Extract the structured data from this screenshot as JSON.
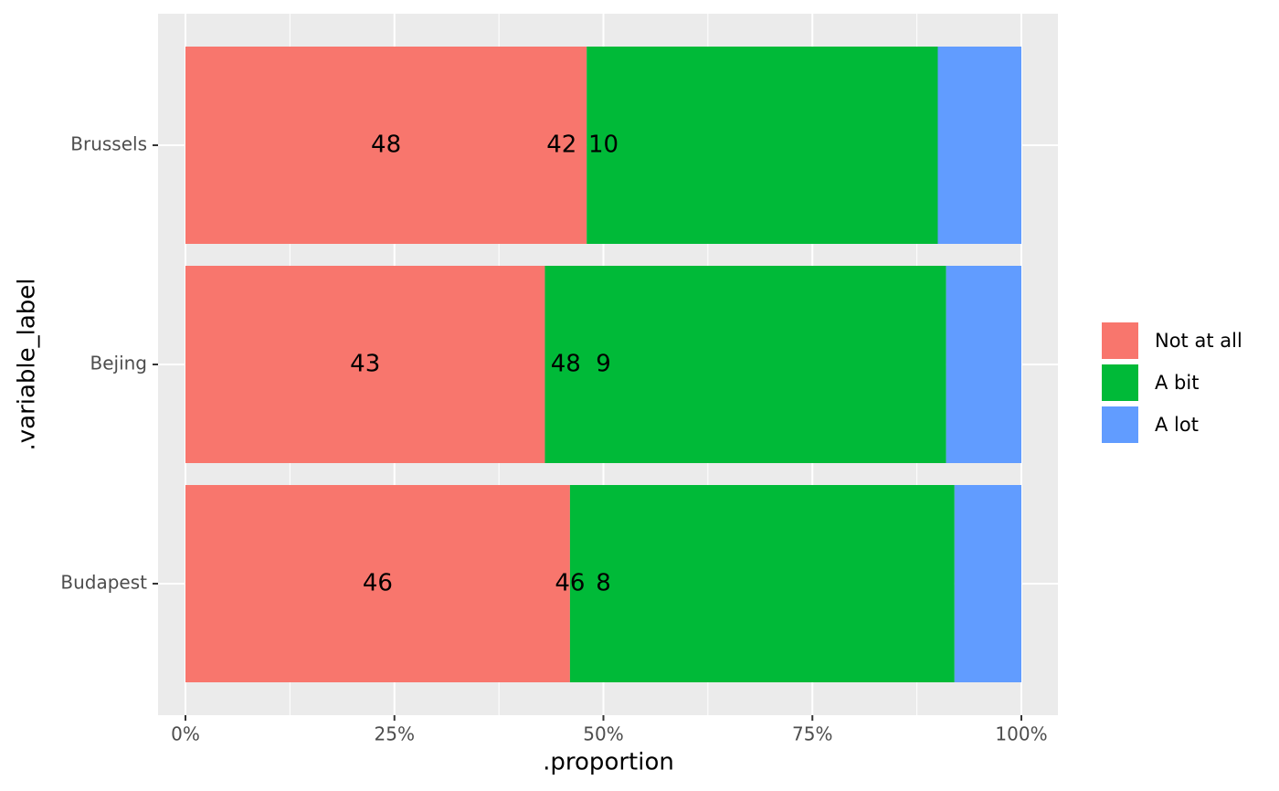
{
  "chart_data": {
    "type": "stacked_barh",
    "x_label": ".proportion",
    "y_label": ".variable_label",
    "categories": [
      "Brussels",
      "Bejing",
      "Budapest"
    ],
    "series": [
      {
        "name": "Not at all",
        "color": "#F8766D",
        "values": [
          48,
          43,
          46
        ]
      },
      {
        "name": "A bit",
        "color": "#00BA38",
        "values": [
          42,
          48,
          46
        ]
      },
      {
        "name": "A lot",
        "color": "#619CFF",
        "values": [
          10,
          9,
          8
        ]
      }
    ],
    "xlim": [
      0,
      100
    ],
    "xticks": [
      {
        "value": 0,
        "label": "0%"
      },
      {
        "value": 25,
        "label": "25%"
      },
      {
        "value": 50,
        "label": "50%"
      },
      {
        "value": 75,
        "label": "75%"
      },
      {
        "value": 100,
        "label": "100%"
      }
    ],
    "grid": true,
    "legend": "right"
  }
}
